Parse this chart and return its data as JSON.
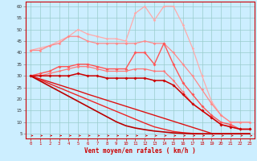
{
  "x": [
    0,
    1,
    2,
    3,
    4,
    5,
    6,
    7,
    8,
    9,
    10,
    11,
    12,
    13,
    14,
    15,
    16,
    17,
    18,
    19,
    20,
    21,
    22,
    23
  ],
  "line_light1": [
    41,
    42,
    43,
    45,
    47,
    50,
    48,
    47,
    46,
    46,
    45,
    57,
    60,
    54,
    60,
    60,
    52,
    42,
    30,
    19,
    13,
    10,
    10,
    10
  ],
  "line_light2": [
    41,
    41,
    43,
    44,
    47,
    47,
    45,
    44,
    44,
    44,
    44,
    44,
    45,
    44,
    44,
    40,
    35,
    30,
    24,
    18,
    13,
    10,
    10,
    10
  ],
  "line_med1": [
    30,
    31,
    32,
    34,
    34,
    35,
    35,
    34,
    33,
    33,
    33,
    40,
    40,
    35,
    44,
    35,
    27,
    22,
    17,
    13,
    10,
    9,
    7,
    7
  ],
  "line_med2": [
    30,
    30,
    31,
    32,
    33,
    34,
    34,
    33,
    32,
    32,
    32,
    33,
    33,
    32,
    32,
    28,
    23,
    18,
    15,
    12,
    9,
    8,
    7,
    7
  ],
  "line_dark1": [
    30,
    30,
    30,
    30,
    30,
    31,
    30,
    30,
    29,
    29,
    29,
    29,
    29,
    28,
    28,
    26,
    22,
    18,
    15,
    12,
    9,
    8,
    7,
    7
  ],
  "line_straight1": [
    30,
    28.7,
    27.4,
    26.1,
    24.8,
    23.5,
    22.1,
    20.8,
    19.5,
    18.2,
    16.9,
    15.6,
    14.3,
    13.0,
    11.7,
    10.4,
    9.1,
    7.8,
    6.5,
    5.2,
    5,
    5,
    5,
    5
  ],
  "line_straight2": [
    30,
    28.3,
    26.6,
    24.9,
    23.2,
    21.5,
    19.8,
    18.1,
    16.4,
    14.7,
    13.0,
    11.3,
    9.6,
    8.0,
    7.0,
    6.0,
    5.5,
    5.2,
    5.0,
    5.0,
    5,
    5,
    5,
    5
  ],
  "line_straight3": [
    30,
    27.8,
    25.6,
    23.4,
    21.2,
    19.0,
    16.8,
    14.6,
    12.4,
    10.2,
    8.5,
    7.5,
    6.8,
    6.2,
    5.8,
    5.4,
    5.2,
    5.0,
    5.0,
    5.0,
    5,
    5,
    5,
    5
  ],
  "color_light1": "#ffaaaa",
  "color_light2": "#ff8888",
  "color_med1": "#ff5555",
  "color_med2": "#ff7777",
  "color_dark1": "#cc0000",
  "color_straight1": "#dd1111",
  "color_straight2": "#ee2222",
  "color_straight3": "#bb0000",
  "bg_color": "#cceeff",
  "grid_color": "#99cccc",
  "xlabel": "Vent moyen/en rafales ( km/h )",
  "ylabel_ticks": [
    5,
    10,
    15,
    20,
    25,
    30,
    35,
    40,
    45,
    50,
    55,
    60
  ],
  "ylim": [
    3,
    62
  ],
  "xlim": [
    -0.5,
    23.5
  ]
}
